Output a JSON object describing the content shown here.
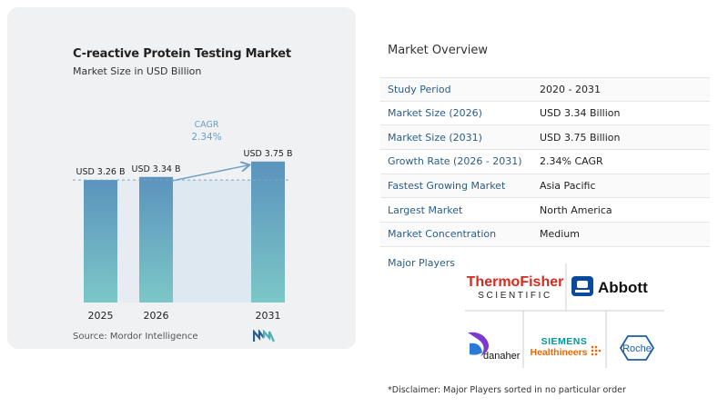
{
  "chart": {
    "title": "C-reactive Protein Testing Market",
    "subtitle": "Market Size in USD Billion",
    "source": "Source:  Mordor Intelligence",
    "cagr_label": "CAGR",
    "cagr_value": "2.34%"
  },
  "chart_data": {
    "type": "bar",
    "title": "C-reactive Protein Testing Market",
    "subtitle": "Market Size in USD Billion",
    "categories": [
      "2025",
      "2026",
      "2031"
    ],
    "values": [
      3.26,
      3.34,
      3.75
    ],
    "data_labels": [
      "USD 3.26 B",
      "USD 3.34 B",
      "USD 3.75 B"
    ],
    "annotation": "CAGR 2.34%",
    "colors": {
      "bar_top": "#5b93bd",
      "bar_bottom": "#7cc7c7",
      "gap_fill": "#dde8f1",
      "arrow": "#6a9ec5",
      "ref_line": "#7fa6c6"
    }
  },
  "overview": {
    "title": "Market Overview",
    "rows": [
      {
        "key": "Study Period",
        "value": "2020 - 2031"
      },
      {
        "key": "Market Size (2026)",
        "value": "USD 3.34 Billion"
      },
      {
        "key": "Market Size (2031)",
        "value": "USD 3.75 Billion"
      },
      {
        "key": "Growth Rate (2026 - 2031)",
        "value": "2.34% CAGR"
      },
      {
        "key": "Fastest Growing Market",
        "value": "Asia Pacific"
      },
      {
        "key": "Largest Market",
        "value": "North America"
      },
      {
        "key": "Market Concentration",
        "value": "Medium"
      }
    ],
    "players_label": "Major Players",
    "disclaimer": "*Disclaimer: Major Players sorted in no particular order"
  },
  "logos": {
    "thermo_line1": "ThermoFisher",
    "thermo_line2": "SCIENTIFIC",
    "abbott": "Abbott",
    "danaher": "danaher",
    "siemens_line1": "SIEMENS",
    "siemens_line2": "Healthineers",
    "roche": "Roche"
  }
}
